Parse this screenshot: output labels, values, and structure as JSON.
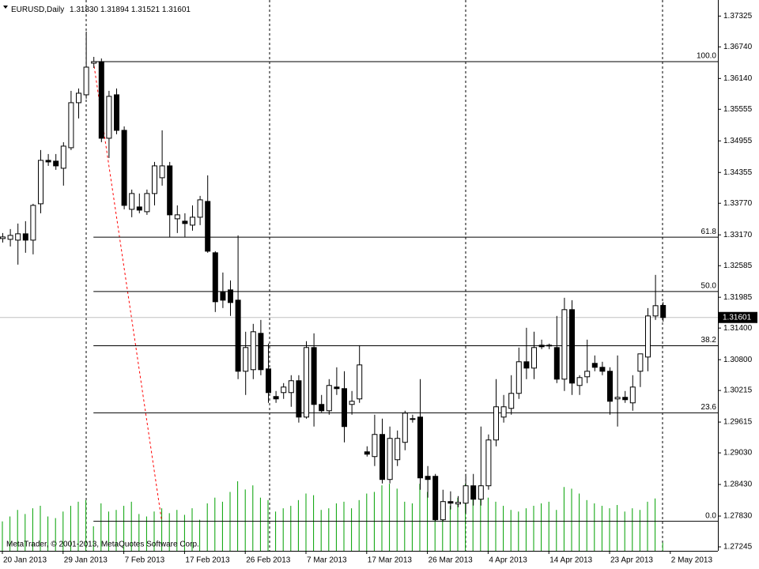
{
  "chart_data": {
    "type": "candlestick",
    "symbol": "EURUSD,Daily",
    "ohlc_labels": [
      "1.31830",
      "1.31894",
      "1.31521",
      "1.31601"
    ],
    "copyright": "MetaTrader, © 2001-2013, MetaQuotes Software Corp.",
    "ylim": [
      1.2717,
      1.3763
    ],
    "yticks": [
      1.37325,
      {
        "value": 1.3674,
        "label": "1.36740"
      },
      {
        "value": 1.3614,
        "label": "1.36140"
      },
      1.35555,
      1.34955,
      1.34355,
      {
        "value": 1.3377,
        "label": "1.33770"
      },
      {
        "value": 1.3317,
        "label": "1.33170"
      },
      1.32585,
      1.31985,
      {
        "value": 1.314,
        "label": "1.31400"
      },
      {
        "value": 1.308,
        "label": "1.30800"
      },
      1.30215,
      1.29615,
      {
        "value": 1.2903,
        "label": "1.29030"
      },
      {
        "value": 1.2843,
        "label": "1.28430"
      },
      {
        "value": 1.2783,
        "label": "1.27830"
      },
      1.27245
    ],
    "xticks": [
      {
        "value": 0,
        "label": "20 Jan 2013"
      },
      {
        "value": 8,
        "label": "29 Jan 2013"
      },
      {
        "value": 16,
        "label": "7 Feb 2013"
      },
      {
        "value": 24,
        "label": "17 Feb 2013"
      },
      {
        "value": 32,
        "label": "26 Feb 2013"
      },
      {
        "value": 40,
        "label": "7 Mar 2013"
      },
      {
        "value": 48,
        "label": "17 Mar 2013"
      },
      {
        "value": 56,
        "label": "26 Mar 2013"
      },
      {
        "value": 64,
        "label": "4 Apr 2013"
      },
      {
        "value": 72,
        "label": "14 Apr 2013"
      },
      {
        "value": 80,
        "label": "23 Apr 2013"
      },
      {
        "value": 88,
        "label": "2 May 2013"
      }
    ],
    "open": [
      1.331,
      1.33085,
      1.3307,
      1.3319,
      1.3307,
      1.3376,
      1.34585,
      1.3457,
      1.34435,
      1.34825,
      1.3568,
      1.3583,
      1.3643,
      1.3646,
      1.35005,
      1.3583,
      1.35155,
      1.33655,
      1.337,
      1.3361,
      1.33955,
      1.34255,
      1.3448,
      1.33475,
      1.3343,
      1.33355,
      1.33505,
      1.33805,
      1.3283,
      1.3208,
      1.32125,
      1.3193,
      1.3058,
      1.3061,
      1.313,
      1.30625,
      1.301,
      1.30175,
      1.30175,
      1.304,
      1.2971,
      1.3103,
      1.2995,
      1.2983,
      1.3028,
      1.3025,
      1.2995,
      1.30055,
      1.2905,
      1.2896,
      1.2938,
      1.28525,
      1.289,
      1.2923,
      1.2968,
      1.2971,
      1.28585,
      1.28585,
      1.2776,
      1.28105,
      1.2806,
      1.28075,
      1.28405,
      1.2815,
      1.28405,
      1.29275,
      1.2971,
      1.29875,
      1.3016,
      1.3076,
      1.3064,
      1.31075,
      1.3106,
      1.3103,
      1.3043,
      1.3175,
      1.3031,
      1.30475,
      1.3073,
      1.30655,
      1.3058,
      1.30055,
      1.30085,
      1.2998,
      1.3058,
      1.3085,
      1.3163,
      1.3183
    ],
    "high": [
      1.33205,
      1.3328,
      1.33385,
      1.3343,
      1.3376,
      1.3478,
      1.34705,
      1.34705,
      1.3493,
      1.35905,
      1.3595,
      1.3703,
      1.3655,
      1.3652,
      1.35905,
      1.3595,
      1.3523,
      1.3403,
      1.33955,
      1.3403,
      1.34555,
      1.35155,
      1.34555,
      1.3373,
      1.3358,
      1.3373,
      1.3391,
      1.343,
      1.3286,
      1.32455,
      1.32305,
      1.3316,
      1.3133,
      1.3148,
      1.31555,
      1.31105,
      1.30205,
      1.30355,
      1.30505,
      1.30505,
      1.3115,
      1.313,
      1.3013,
      1.3043,
      1.30655,
      1.3058,
      1.30205,
      1.31075,
      1.29155,
      1.29755,
      1.2968,
      1.2953,
      1.29455,
      1.2983,
      1.29755,
      1.3043,
      1.2878,
      1.2863,
      1.2833,
      1.283,
      1.2821,
      1.2863,
      1.2863,
      1.2953,
      1.2938,
      1.3043,
      1.3013,
      1.30505,
      1.3103,
      1.31405,
      1.3133,
      1.3118,
      1.31105,
      1.3163,
      1.31975,
      1.3193,
      1.30505,
      1.3118,
      1.3088,
      1.3076,
      1.30655,
      1.3088,
      1.30205,
      1.30505,
      1.3088,
      1.3178,
      1.3241,
      1.31894
    ],
    "low": [
      1.33025,
      1.3295,
      1.32605,
      1.3283,
      1.328,
      1.3358,
      1.3448,
      1.34405,
      1.34105,
      1.3478,
      1.3538,
      1.35755,
      1.3634,
      1.3493,
      1.3463,
      1.3508,
      1.33655,
      1.33505,
      1.3358,
      1.3355,
      1.3373,
      1.34105,
      1.3313,
      1.33205,
      1.3313,
      1.3325,
      1.33355,
      1.3283,
      1.31705,
      1.3178,
      1.3163,
      1.3043,
      1.3013,
      1.3043,
      1.30505,
      1.2998,
      1.2998,
      1.30055,
      1.29905,
      1.29605,
      1.2968,
      1.2953,
      1.298,
      1.29755,
      1.3013,
      1.2923,
      1.29755,
      1.2998,
      1.2896,
      1.2878,
      1.2845,
      1.2845,
      1.2878,
      1.2908,
      1.29605,
      1.2833,
      1.2818,
      1.2773,
      1.2773,
      1.27955,
      1.28,
      1.2788,
      1.2803,
      1.2803,
      1.2833,
      1.29155,
      1.29605,
      1.29755,
      1.30055,
      1.3043,
      1.3043,
      1.31,
      1.31,
      1.30355,
      1.30205,
      1.3013,
      1.3013,
      1.30355,
      1.3058,
      1.30505,
      1.29755,
      1.2953,
      1.2998,
      1.2983,
      1.3028,
      1.3058,
      1.31555,
      1.31521
    ],
    "close": [
      1.3313,
      1.3316,
      1.3319,
      1.3307,
      1.3373,
      1.34585,
      1.34555,
      1.3448,
      1.34855,
      1.3568,
      1.3586,
      1.36355,
      1.3646,
      1.35005,
      1.358,
      1.35155,
      1.3373,
      1.33955,
      1.3364,
      1.33955,
      1.3448,
      1.3448,
      1.3355,
      1.3355,
      1.33385,
      1.33505,
      1.33835,
      1.3286,
      1.319,
      1.3193,
      1.31885,
      1.3058,
      1.3103,
      1.3133,
      1.3061,
      1.30175,
      1.30055,
      1.3028,
      1.304,
      1.2971,
      1.3103,
      1.2995,
      1.2983,
      1.3031,
      1.3025,
      1.2953,
      1.3001,
      1.307,
      1.29005,
      1.2938,
      1.28525,
      1.29305,
      1.29305,
      1.29785,
      1.29665,
      1.28555,
      1.28525,
      1.2776,
      1.28105,
      1.28075,
      1.2809,
      1.28405,
      1.2815,
      1.28405,
      1.29275,
      1.29905,
      1.29905,
      1.3016,
      1.3076,
      1.3064,
      1.3103,
      1.31045,
      1.31075,
      1.3043,
      1.3175,
      1.30355,
      1.3046,
      1.3058,
      1.30655,
      1.3058,
      1.3001,
      1.30085,
      1.3004,
      1.3028,
      1.3091,
      1.3163,
      1.31825,
      1.31601
    ],
    "volume": [
      36,
      42,
      50,
      45,
      52,
      55,
      42,
      40,
      48,
      55,
      60,
      62,
      30,
      58,
      48,
      50,
      55,
      60,
      45,
      42,
      48,
      52,
      46,
      50,
      44,
      52,
      38,
      58,
      65,
      60,
      72,
      85,
      75,
      80,
      65,
      62,
      48,
      52,
      55,
      62,
      70,
      68,
      50,
      52,
      58,
      60,
      52,
      62,
      70,
      72,
      80,
      82,
      76,
      60,
      58,
      82,
      72,
      60,
      52,
      55,
      65,
      82,
      78,
      80,
      65,
      60,
      55,
      50,
      48,
      52,
      55,
      58,
      60,
      50,
      78,
      76,
      70,
      62,
      58,
      55,
      52,
      56,
      48,
      52,
      50,
      60,
      64,
      10
    ],
    "volume_color": "#00a000",
    "fib": {
      "high": 1.3646,
      "low": 1.2773,
      "anchor_bars": [
        12,
        21
      ],
      "color": "#ff0000",
      "levels": [
        {
          "value": 100,
          "label": "100.0"
        },
        61.8,
        {
          "value": 50,
          "label": "50.0"
        },
        38.2,
        23.6,
        {
          "value": 0,
          "label": "0.0"
        }
      ]
    }
  }
}
